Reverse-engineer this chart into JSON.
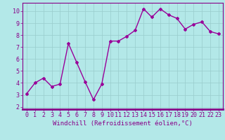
{
  "x": [
    0,
    1,
    2,
    3,
    4,
    5,
    6,
    7,
    8,
    9,
    10,
    11,
    12,
    13,
    14,
    15,
    16,
    17,
    18,
    19,
    20,
    21,
    22,
    23
  ],
  "y": [
    3.1,
    4.0,
    4.4,
    3.7,
    3.9,
    7.3,
    5.7,
    4.1,
    2.6,
    3.9,
    7.5,
    7.5,
    7.9,
    8.4,
    10.2,
    9.5,
    10.2,
    9.7,
    9.4,
    8.5,
    8.9,
    9.1,
    8.3,
    8.1
  ],
  "line_color": "#990099",
  "marker": "D",
  "marker_size": 2,
  "line_width": 1.0,
  "bg_color": "#b3e8e8",
  "grid_color": "#99cccc",
  "xlabel": "Windchill (Refroidissement éolien,°C)",
  "xlabel_color": "#880088",
  "tick_color": "#880088",
  "xlim": [
    -0.5,
    23.5
  ],
  "ylim": [
    1.8,
    10.7
  ],
  "yticks": [
    2,
    3,
    4,
    5,
    6,
    7,
    8,
    9,
    10
  ],
  "xticks": [
    0,
    1,
    2,
    3,
    4,
    5,
    6,
    7,
    8,
    9,
    10,
    11,
    12,
    13,
    14,
    15,
    16,
    17,
    18,
    19,
    20,
    21,
    22,
    23
  ],
  "axis_label_fontsize": 6.5,
  "tick_fontsize": 6.0
}
